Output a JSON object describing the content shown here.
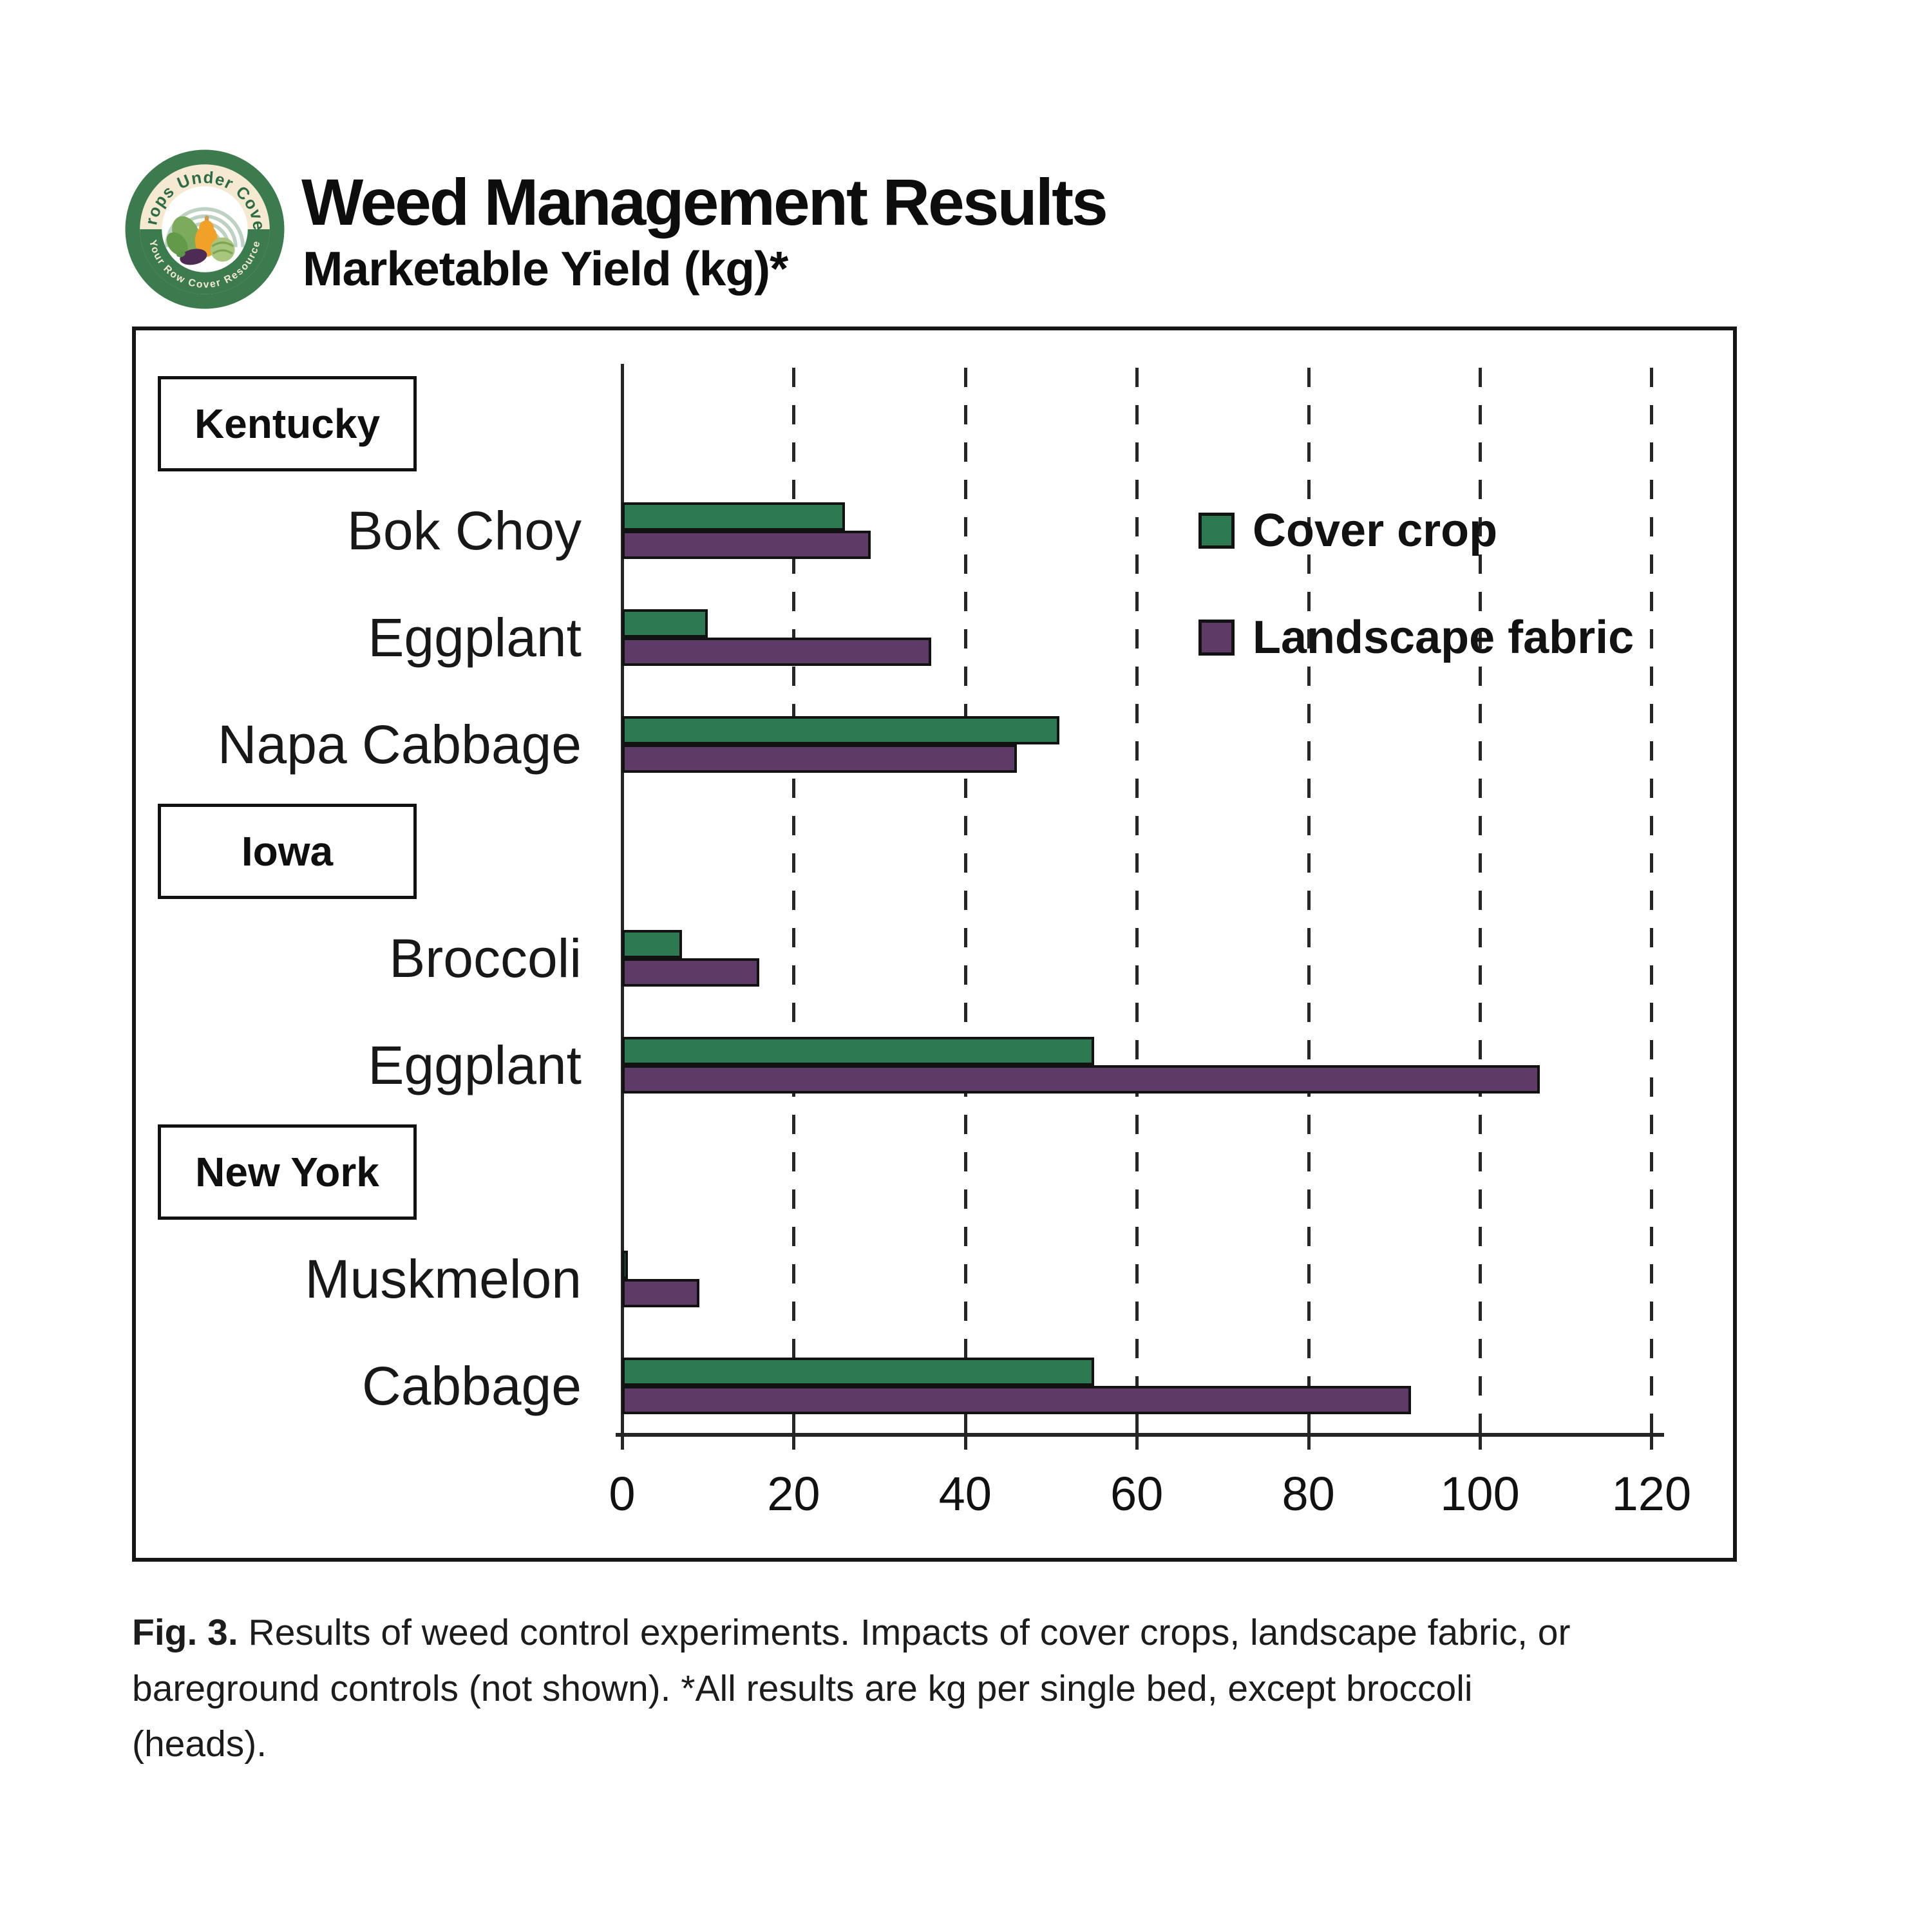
{
  "header": {
    "title": "Weed Management Results",
    "subtitle": "Marketable Yield (kg)*",
    "logo": {
      "top_text": "Crops Under Cover",
      "bottom_text": "Your Row Cover Resource"
    }
  },
  "legend": [
    {
      "label": "Cover crop",
      "color": "#2d7a52"
    },
    {
      "label": "Landscape fabric",
      "color": "#5d3b66"
    }
  ],
  "colors": {
    "cover_crop": "#2d7a52",
    "landscape_fabric": "#5d3b66",
    "bar_outline": "#121212",
    "axis": "#262626",
    "logo_green": "#3c7b4e",
    "logo_cream": "#f6e9d1"
  },
  "chart_data": {
    "type": "bar",
    "orientation": "horizontal",
    "title": "Weed Management Results — Marketable Yield (kg)*",
    "xlabel": "",
    "ylabel": "",
    "unit": "kg",
    "xlim": [
      0,
      120
    ],
    "x_ticks": [
      0,
      20,
      40,
      60,
      80,
      100,
      120
    ],
    "grid": "dashed-vertical",
    "legend_position": "upper-right-inside",
    "series_names": [
      "Cover crop",
      "Landscape fabric"
    ],
    "groups": [
      {
        "state": "Kentucky",
        "crops": [
          {
            "name": "Bok Choy",
            "cover_crop": 26,
            "landscape_fabric": 29
          },
          {
            "name": "Eggplant",
            "cover_crop": 10,
            "landscape_fabric": 36
          },
          {
            "name": "Napa Cabbage",
            "cover_crop": 51,
            "landscape_fabric": 46
          }
        ]
      },
      {
        "state": "Iowa",
        "crops": [
          {
            "name": "Broccoli",
            "cover_crop": 7,
            "landscape_fabric": 16
          },
          {
            "name": "Eggplant",
            "cover_crop": 55,
            "landscape_fabric": 107
          }
        ]
      },
      {
        "state": "New York",
        "crops": [
          {
            "name": "Muskmelon",
            "cover_crop": 0.5,
            "landscape_fabric": 9
          },
          {
            "name": "Cabbage",
            "cover_crop": 55,
            "landscape_fabric": 92
          }
        ]
      }
    ]
  },
  "caption": {
    "prefix": "Fig. 3.",
    "line1": "Results of weed control experiments. Impacts of cover crops, landscape fabric, or",
    "line2": "bareground controls (not shown). *All results are kg per single bed, except broccoli",
    "line3": "(heads)."
  }
}
